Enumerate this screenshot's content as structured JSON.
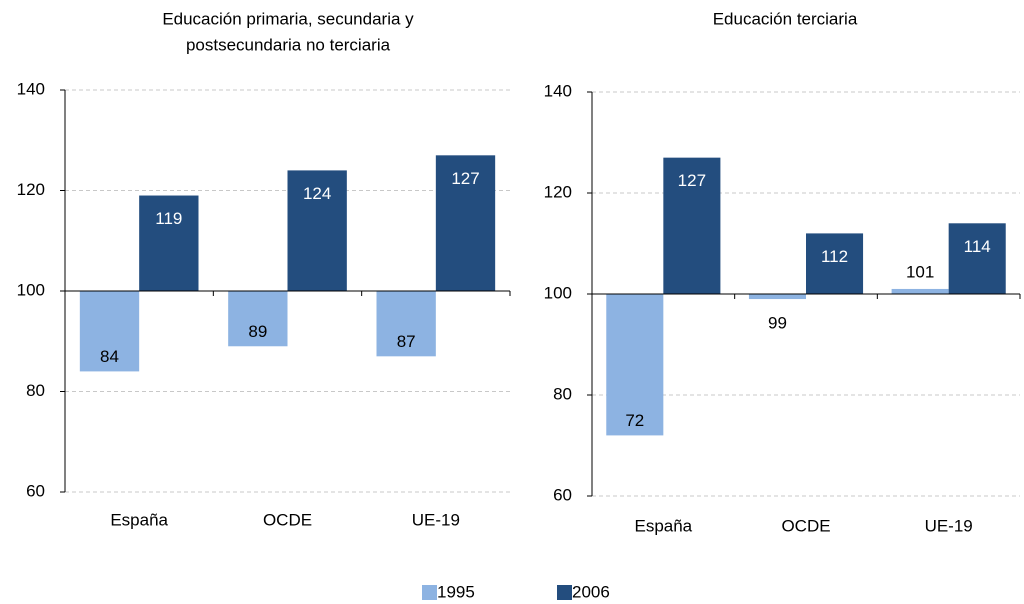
{
  "chart_data": [
    {
      "type": "bar",
      "title": [
        "Educación primaria, secundaria y",
        "postsecundaria no terciaria"
      ],
      "categories": [
        "España",
        "OCDE",
        "UE-19"
      ],
      "series": [
        {
          "name": "1995",
          "color": "#8db3e2",
          "values": [
            84,
            89,
            87
          ]
        },
        {
          "name": "2006",
          "color": "#234d7e",
          "values": [
            119,
            124,
            127
          ]
        }
      ],
      "ylim": [
        60,
        140
      ],
      "yticks": [
        60,
        80,
        100,
        120,
        140
      ],
      "baseline": 100,
      "grid": true
    },
    {
      "type": "bar",
      "title": [
        "Educación terciaria"
      ],
      "categories": [
        "España",
        "OCDE",
        "UE-19"
      ],
      "series": [
        {
          "color": "#8db3e2",
          "values": [
            72,
            99,
            101
          ]
        },
        {
          "color": "#234d7e",
          "values": [
            127,
            112,
            114
          ]
        }
      ],
      "ylim": [
        60,
        140
      ],
      "yticks": [
        60,
        80,
        100,
        120,
        140
      ],
      "baseline": 100,
      "grid": true
    }
  ]
}
